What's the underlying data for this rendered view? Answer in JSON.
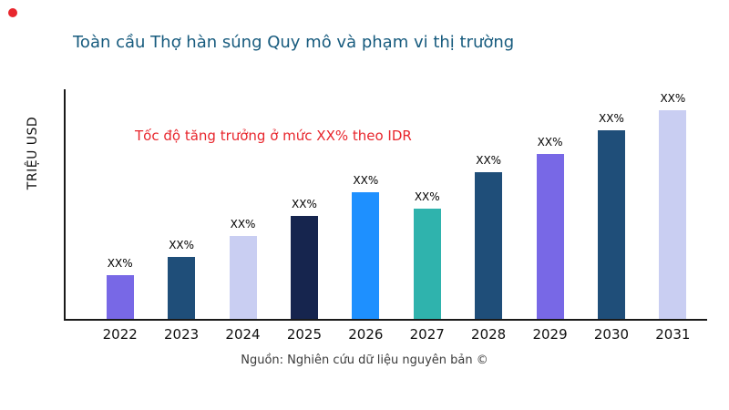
{
  "decor": {
    "dot_color": "#e8262d"
  },
  "chart_data": {
    "type": "bar",
    "title": "Toàn cầu Thợ hàn súng Quy mô và phạm vi thị trường",
    "title_color": "#175b7e",
    "ylabel": "TRIỆU USD",
    "xlabel": "",
    "annotation": "Tốc độ tăng trưởng ở mức XX% theo IDR",
    "annotation_color": "#e8262d",
    "source": "Nguồn: Nghiên cứu dữ liệu nguyên bản ©",
    "categories": [
      "2022",
      "2023",
      "2024",
      "2025",
      "2026",
      "2027",
      "2028",
      "2029",
      "2030",
      "2031"
    ],
    "bar_labels": [
      "XX%",
      "XX%",
      "XX%",
      "XX%",
      "XX%",
      "XX%",
      "XX%",
      "XX%",
      "XX%",
      "XX%"
    ],
    "values_relative_pct": [
      19,
      27,
      36,
      45,
      55,
      48,
      64,
      72,
      82,
      91
    ],
    "bar_colors": [
      "#7868e6",
      "#1f4e79",
      "#c9cef2",
      "#16254e",
      "#1e90ff",
      "#2fb3ad",
      "#1f4e79",
      "#7868e6",
      "#1f4e79",
      "#c9cef2"
    ],
    "ylim": [
      0,
      100
    ],
    "grid": false,
    "legend": false,
    "notes": "No numeric y-axis ticks shown; bar values displayed as XX% placeholders; heights estimated as percent of tallest-bar scale."
  }
}
